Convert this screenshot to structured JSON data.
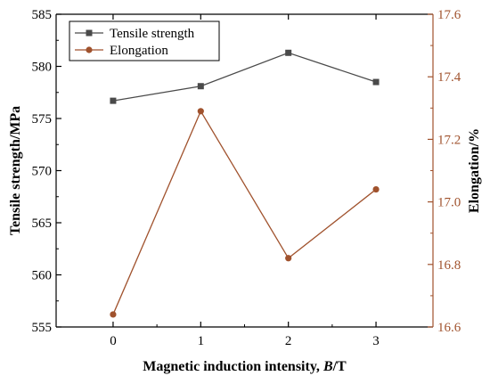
{
  "chart_data": {
    "type": "line",
    "categories": [
      "0",
      "1",
      "2",
      "3"
    ],
    "x": [
      0,
      1,
      2,
      3
    ],
    "xlabel_parts": [
      "Magnetic induction intensity, ",
      "B",
      "/T"
    ],
    "ylabel_left": "Tensile strength/MPa",
    "ylabel_right": "Elongation/%",
    "xlim": [
      -0.65,
      3.65
    ],
    "ylim_left": [
      555,
      585
    ],
    "ylim_right": [
      16.6,
      17.6
    ],
    "yticks_left": [
      "555",
      "560",
      "565",
      "570",
      "575",
      "580",
      "585"
    ],
    "yticks_right": [
      "16.6",
      "16.8",
      "17.0",
      "17.2",
      "17.4",
      "17.6"
    ],
    "series": [
      {
        "name": "Tensile strength",
        "axis": "left",
        "marker": "square",
        "color": "#4a4a4a",
        "values": [
          576.7,
          578.1,
          581.3,
          578.5
        ]
      },
      {
        "name": "Elongation",
        "axis": "right",
        "marker": "circle",
        "color": "#a0522d",
        "values": [
          16.64,
          17.29,
          16.82,
          17.04
        ]
      }
    ],
    "left_axis_color": "#000000",
    "right_axis_color": "#a0522d",
    "grid": false,
    "legend_position": "top-left"
  }
}
